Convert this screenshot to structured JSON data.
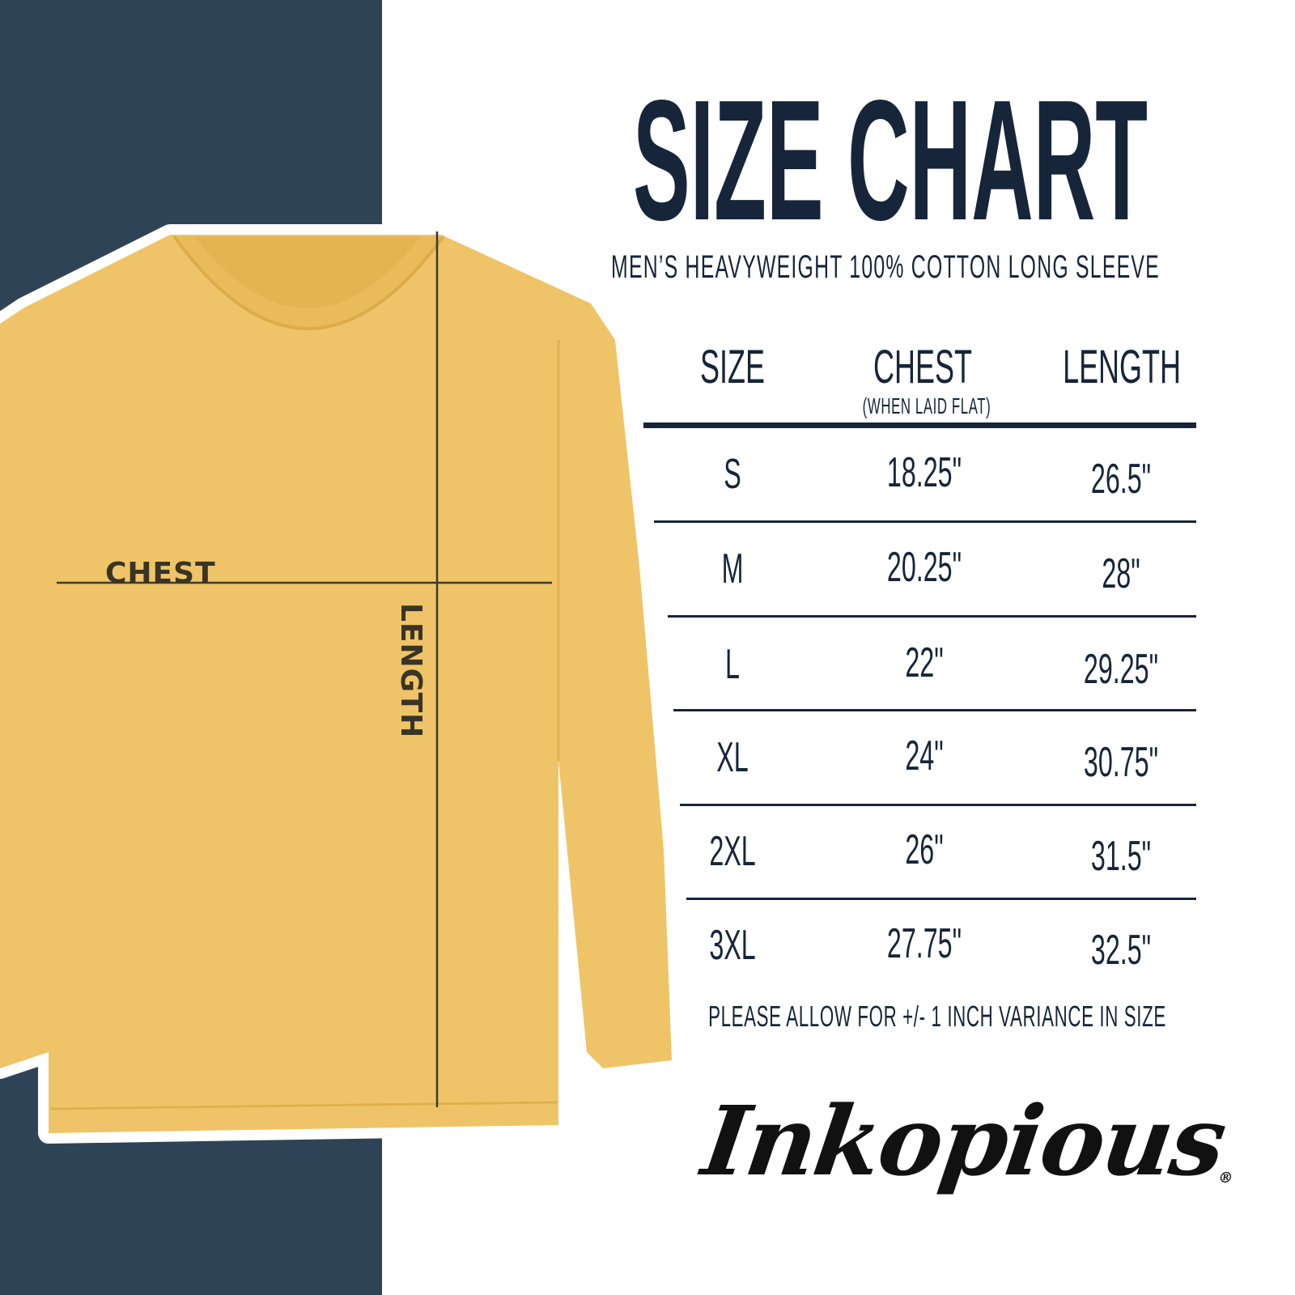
{
  "title": "SIZE CHART",
  "subtitle": "MEN’S HEAVYWEIGHT 100% COTTON LONG SLEEVE",
  "diagram": {
    "chest_label": "CHEST",
    "length_label": "LENGTH"
  },
  "table": {
    "headers": {
      "size": "SIZE",
      "chest": "CHEST",
      "chest_note": "(WHEN LAID FLAT)",
      "length": "LENGTH"
    },
    "rows": [
      {
        "size": "S",
        "chest": "18.25\"",
        "length": "26.5\""
      },
      {
        "size": "M",
        "chest": "20.25\"",
        "length": "28\""
      },
      {
        "size": "L",
        "chest": "22\"",
        "length": "29.25\""
      },
      {
        "size": "XL",
        "chest": "24\"",
        "length": "30.75\""
      },
      {
        "size": "2XL",
        "chest": "26\"",
        "length": "31.5\""
      },
      {
        "size": "3XL",
        "chest": "27.75\"",
        "length": "32.5\""
      }
    ]
  },
  "note": "PLEASE ALLOW FOR +/- 1 INCH VARIANCE IN SIZE",
  "brand": {
    "logo_text": "Inkopious",
    "registered": "®"
  },
  "colors": {
    "panel": "#2e4356",
    "text": "#17253a",
    "shirt": "#efc468"
  }
}
